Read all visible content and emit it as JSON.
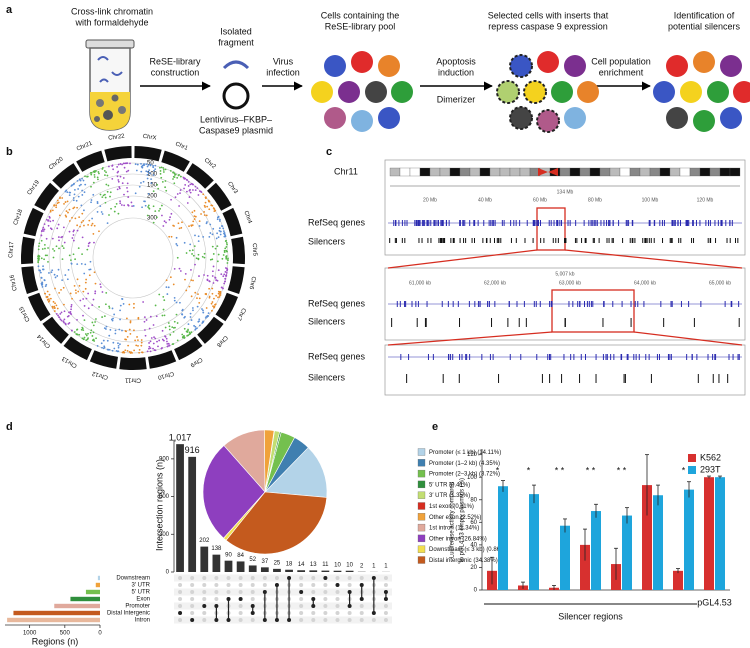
{
  "panel_a": {
    "label": "a",
    "crosslink": [
      "Cross-link chromatin",
      "with formaldehyde"
    ],
    "library": [
      "ReSE-library",
      "construction"
    ],
    "fragment": [
      "Isolated",
      "fragment"
    ],
    "plasmid": [
      "Lentivirus–FKBP–",
      "Caspase9 plasmid"
    ],
    "infection": [
      "Virus",
      "infection"
    ],
    "pool": [
      "Cells containing the",
      "ReSE-library pool"
    ],
    "apoptosis": [
      "Apoptosis",
      "induction"
    ],
    "dimerizer": "Dimerizer",
    "selected": [
      "Selected cells with inserts that",
      "repress caspase 9 expression"
    ],
    "enrichment": [
      "Cell population",
      "enrichment"
    ],
    "identification": [
      "Identification of",
      "potential silencers"
    ]
  },
  "panel_b": {
    "label": "b",
    "chromosomes": [
      "ChrX",
      "Chr1",
      "Chr2",
      "Chr3",
      "Chr4",
      "Chr5",
      "Chr6",
      "Chr7",
      "Chr8",
      "Chr9",
      "Chr10",
      "Chr11",
      "Chr12",
      "Chr13",
      "Chr14",
      "Chr15",
      "Chr16",
      "Chr17",
      "Chr18",
      "Chr19",
      "Chr20",
      "Chr21",
      "Chr22"
    ],
    "scale": [
      50,
      100,
      150,
      200,
      300
    ]
  },
  "panel_c": {
    "label": "c",
    "chromosome": "Chr11",
    "size": "134 Mb",
    "axis": [
      "20 Mb",
      "40 Mb",
      "60 Mb",
      "80 Mb",
      "100 Mb",
      "120 Mb"
    ],
    "zoom_size": "5,007 kb",
    "zoom_axis": [
      "61,000 kb",
      "62,000 kb",
      "63,000 kb",
      "64,000 kb",
      "65,000 kb"
    ],
    "tracks": [
      "RefSeq genes",
      "Silencers"
    ]
  },
  "chart_data": [
    {
      "type": "bar",
      "label": "d",
      "ylabel": "Intersection regions (n)",
      "values": [
        1017,
        916,
        202,
        138,
        90,
        84,
        52,
        37,
        25,
        18,
        14,
        13,
        11,
        10,
        10,
        2,
        1,
        1
      ],
      "value_labels": [
        "1,017",
        "916",
        "202",
        "138",
        "90",
        "84",
        "52",
        "37",
        "25",
        "18",
        "14",
        "13",
        "11",
        "10",
        "10",
        "2",
        "1",
        "1"
      ],
      "color": "#333333",
      "ylim": [
        0,
        1050
      ],
      "yticks": [
        0,
        300,
        600,
        900
      ],
      "set_names": [
        "Downstream",
        "3′ UTR",
        "5′ UTR",
        "Exon",
        "Promoter",
        "Distal Intergenic",
        "Intron"
      ],
      "sets": [
        [
          5
        ],
        [
          6
        ],
        [
          4
        ],
        [
          4,
          6
        ],
        [
          3,
          6
        ],
        [
          3
        ],
        [
          4,
          5
        ],
        [
          2,
          6
        ],
        [
          1,
          6
        ],
        [
          0,
          6
        ],
        [
          2
        ],
        [
          3,
          4
        ],
        [
          0
        ],
        [
          1
        ],
        [
          2,
          4
        ],
        [
          1,
          3
        ],
        [
          0,
          5
        ],
        [
          2,
          3
        ]
      ]
    },
    {
      "type": "pie",
      "categories": [
        "Promoter (≤ 1 kb)",
        "Promoter (1–2 kb)",
        "Promoter (2–3 kb)",
        "5′ UTR",
        "3′ UTR",
        "1st exon",
        "Other exon",
        "1st intron",
        "Other intron",
        "Downstream (≤ 3 kb)",
        "Distal intergenic"
      ],
      "values": [
        14.11,
        4.35,
        3.72,
        0.41,
        1.35,
        0.11,
        2.52,
        11.34,
        26.84,
        0.86,
        34.38
      ],
      "value_labels": [
        "(14.11%)",
        "(4.35%)",
        "(3.72%)",
        "(0.41%)",
        "(1.35%)",
        "(0.11%)",
        "(2.52%)",
        "(11.34%)",
        "(26.84%)",
        "(0.86%)",
        "(34.38%)"
      ],
      "colors": [
        "#b3d3e8",
        "#3f7fb0",
        "#74c04e",
        "#2f8f3c",
        "#c2de72",
        "#d62d20",
        "#f0a23a",
        "#e0a99c",
        "#8e3fbf",
        "#f2df4f",
        "#c45a1e"
      ]
    },
    {
      "type": "hbar",
      "xlabel": "Regions (n)",
      "values": [
        30,
        60,
        200,
        420,
        650,
        1230,
        1320
      ],
      "colors": [
        "#b3d3e8",
        "#f0a23a",
        "#74c04e",
        "#2f8f3c",
        "#e0a99c",
        "#c45a1e",
        "#e8b89c"
      ],
      "xlim": [
        0,
        1350
      ],
      "xticks": [
        0,
        500,
        1000
      ]
    },
    {
      "type": "grouped_bar",
      "label": "e",
      "ylabel": [
        "Luciferase activity compared",
        "to pGL4.53 empty plasmids (%)"
      ],
      "categories": [
        null,
        null,
        null,
        null,
        null,
        null,
        null,
        "pGL4.53"
      ],
      "group_label": "Silencer regions",
      "significance": [
        "*",
        "*",
        "* *",
        "* *",
        "* *",
        null,
        "*",
        null
      ],
      "series": [
        {
          "name": "K562",
          "color": "#d7302f",
          "values": [
            17,
            4,
            2,
            40,
            23,
            93,
            17,
            100
          ],
          "errors": [
            12,
            3,
            2,
            14,
            14,
            27,
            2,
            1
          ]
        },
        {
          "name": "293T",
          "color": "#1ea5dc",
          "values": [
            92,
            85,
            57,
            70,
            66,
            84,
            89,
            100
          ],
          "errors": [
            5,
            8,
            6,
            6,
            7,
            9,
            7,
            1
          ]
        }
      ],
      "ylim": [
        0,
        125
      ],
      "yticks": [
        0,
        20,
        40,
        60,
        80,
        100,
        120
      ]
    }
  ]
}
